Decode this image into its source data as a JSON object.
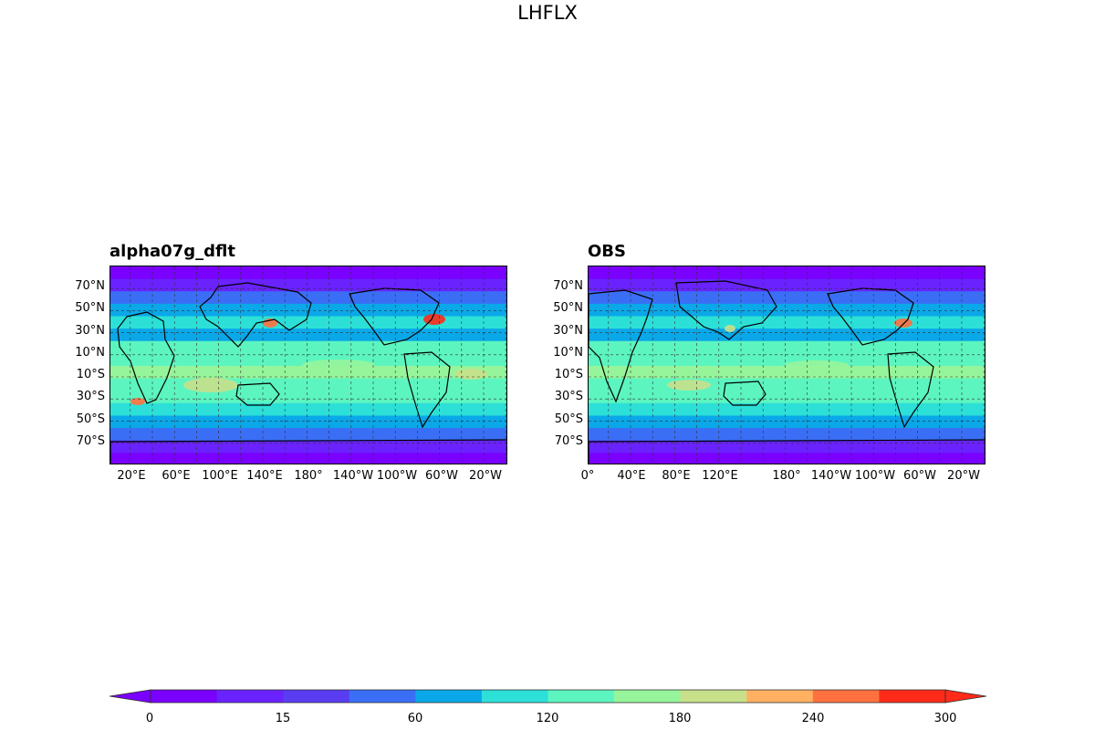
{
  "figure": {
    "title": "LHFLX"
  },
  "panels": [
    {
      "title": "alpha07g_dflt",
      "lat_labels": [
        "70°N",
        "50°N",
        "30°N",
        "10°N",
        "10°S",
        "30°S",
        "50°S",
        "70°S"
      ],
      "lon_labels": [
        "20°E",
        "60°E",
        "100°E",
        "140°E",
        "180°",
        "140°W",
        "100°W",
        "60°W",
        "20°W"
      ]
    },
    {
      "title": "OBS",
      "lat_labels": [
        "70°N",
        "50°N",
        "30°N",
        "10°N",
        "10°S",
        "30°S",
        "50°S",
        "70°S"
      ],
      "lon_labels": [
        "0°",
        "40°E",
        "80°E",
        "120°E",
        "180°",
        "140°W",
        "100°W",
        "60°W",
        "20°W"
      ]
    }
  ],
  "colorbar": {
    "tick_labels": [
      "0",
      "15",
      "60",
      "120",
      "180",
      "240",
      "300"
    ],
    "colors": [
      "#7a00ff",
      "#6a22ff",
      "#5a3cf2",
      "#3a6ef5",
      "#0aa8e8",
      "#2ce0d8",
      "#5cf5c0",
      "#96f59a",
      "#c8e08a",
      "#ffb060",
      "#ff7040",
      "#ff2a18"
    ],
    "extend": "both",
    "colormap": "rainbow"
  }
}
